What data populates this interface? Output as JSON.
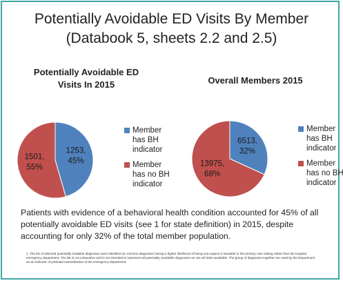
{
  "title": "Potentially Avoidable ED Visits By Member\n(Databook 5, sheets 2.2 and 2.5)",
  "chart_data": [
    {
      "type": "pie",
      "title": "Potentially Avoidable ED Visits In 2015",
      "categories": [
        "Member has BH indicator",
        "Member has no BH indicator"
      ],
      "values": [
        1253,
        1501
      ],
      "value_labels": [
        "1253, 45%",
        "1501, 55%"
      ],
      "colors": [
        "#4f81bd",
        "#c0504d"
      ]
    },
    {
      "type": "pie",
      "title": "Overall Members 2015",
      "categories": [
        "Member has BH indicator",
        "Member has no BH indicator"
      ],
      "values": [
        6513,
        13975
      ],
      "value_labels": [
        "6513, 32%",
        "13975, 68%"
      ],
      "colors": [
        "#4f81bd",
        "#c0504d"
      ]
    }
  ],
  "body": "Patients with evidence of a behavioral health condition accounted for 45% of all potentially avoidable ED visits (see 1 for state definition) in 2015, despite accounting for only 32% of the total member population.",
  "footnote": "1. The list of selected potentially treatable diagnoses were identified as common diagnoses having a higher likelihood of being non-urgent or treatable in the primary care setting rather than the hospital emergency department. The list is not exhaustive and is not intended to represent all potentially avoidable diagnoses nor are all visits avoidable. The group of diagnoses together are used by the Department as an indicator of potential overutilization of the emergency department."
}
